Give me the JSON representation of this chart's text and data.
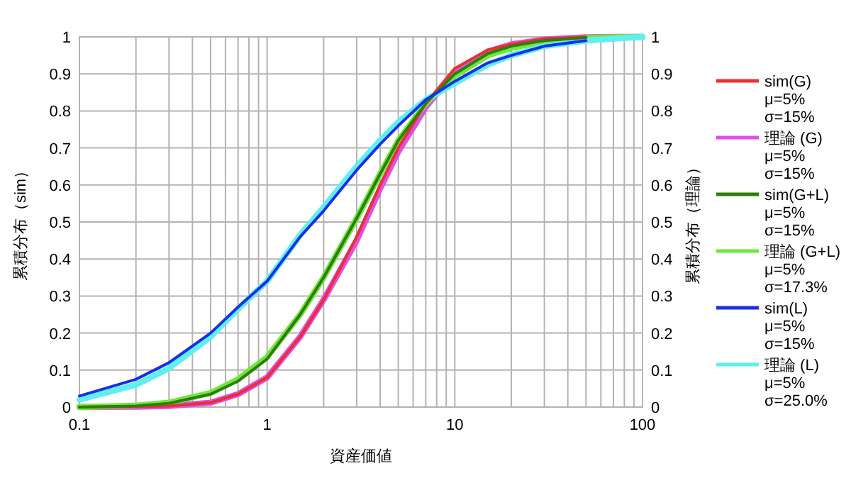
{
  "chart_data": {
    "type": "line",
    "xlabel": "資産価値",
    "ylabel": "累積分布（sim）",
    "y2label": "累積分布（理論）",
    "log": "x",
    "xlim": [
      0.1,
      100
    ],
    "xticks": [
      0.1,
      1,
      10,
      100
    ],
    "ylim": [
      0,
      1
    ],
    "yticks": [
      0,
      0.1,
      0.2,
      0.3,
      0.4,
      0.5,
      0.6,
      0.7,
      0.8,
      0.9,
      1
    ],
    "y2lim": [
      0,
      1
    ],
    "y2ticks": [
      0,
      0.1,
      0.2,
      0.3,
      0.4,
      0.5,
      0.6,
      0.7,
      0.8,
      0.9,
      1
    ],
    "grid": true,
    "legend": "right",
    "marker": "none",
    "line_style": "solid",
    "series": [
      {
        "name": "sim(G)\nμ=5%\nσ=15%",
        "color": "#e8312f",
        "x": [
          0.1,
          0.2,
          0.3,
          0.5,
          0.7,
          1,
          1.5,
          2,
          3,
          4,
          5,
          7,
          10,
          15,
          20,
          30,
          50
        ],
        "values": [
          0,
          0.001,
          0.003,
          0.012,
          0.035,
          0.08,
          0.19,
          0.29,
          0.46,
          0.6,
          0.7,
          0.82,
          0.915,
          0.965,
          0.98,
          0.995,
          1
        ]
      },
      {
        "name": "理論 (G)\nμ=5%\nσ=15%",
        "color": "#e04ee6",
        "axis": "y2",
        "x": [
          0.1,
          0.2,
          0.3,
          0.5,
          0.7,
          1,
          1.5,
          2,
          3,
          4,
          5,
          7,
          10,
          15,
          20,
          30,
          50,
          70,
          100
        ],
        "values": [
          0,
          0.001,
          0.003,
          0.012,
          0.035,
          0.08,
          0.19,
          0.29,
          0.45,
          0.59,
          0.69,
          0.81,
          0.905,
          0.96,
          0.98,
          0.993,
          0.999,
          1,
          1
        ]
      },
      {
        "name": "sim(G+L)\nμ=5%\nσ=15%",
        "color": "#2e7d0a",
        "x": [
          0.1,
          0.2,
          0.3,
          0.5,
          0.7,
          1,
          1.5,
          2,
          3,
          4,
          5,
          7,
          10,
          15,
          20,
          30,
          50
        ],
        "values": [
          0,
          0.003,
          0.01,
          0.035,
          0.07,
          0.13,
          0.25,
          0.35,
          0.51,
          0.63,
          0.72,
          0.82,
          0.9,
          0.955,
          0.975,
          0.99,
          0.998
        ]
      },
      {
        "name": "理論 (G+L)\nμ=5%\nσ=17.3%",
        "color": "#6ee83a",
        "axis": "y2",
        "x": [
          0.1,
          0.2,
          0.3,
          0.5,
          0.7,
          1,
          1.5,
          2,
          3,
          4,
          5,
          7,
          10,
          15,
          20,
          30,
          50,
          70,
          100
        ],
        "values": [
          0,
          0.004,
          0.012,
          0.038,
          0.075,
          0.135,
          0.25,
          0.35,
          0.51,
          0.63,
          0.72,
          0.82,
          0.895,
          0.95,
          0.97,
          0.988,
          0.997,
          0.999,
          1
        ]
      },
      {
        "name": "sim(L)\nμ=5%\nσ=15%",
        "color": "#1a2ee8",
        "x": [
          0.1,
          0.2,
          0.3,
          0.5,
          0.7,
          1,
          1.5,
          2,
          3,
          4,
          5,
          7,
          10,
          15,
          20,
          30,
          50
        ],
        "values": [
          0.03,
          0.075,
          0.12,
          0.2,
          0.27,
          0.34,
          0.46,
          0.53,
          0.64,
          0.71,
          0.76,
          0.83,
          0.88,
          0.93,
          0.95,
          0.975,
          0.99
        ]
      },
      {
        "name": "理論 (L)\nμ=5%\nσ=25.0%",
        "color": "#5ef0f0",
        "axis": "y2",
        "x": [
          0.1,
          0.2,
          0.3,
          0.5,
          0.7,
          1,
          1.5,
          2,
          3,
          4,
          5,
          7,
          10,
          15,
          20,
          30,
          50,
          70,
          100
        ],
        "values": [
          0.02,
          0.06,
          0.105,
          0.19,
          0.265,
          0.34,
          0.465,
          0.54,
          0.65,
          0.72,
          0.77,
          0.83,
          0.875,
          0.925,
          0.95,
          0.975,
          0.99,
          0.995,
          1
        ]
      }
    ]
  }
}
